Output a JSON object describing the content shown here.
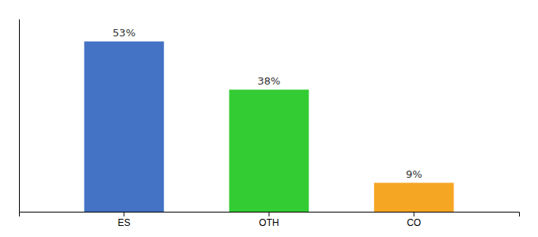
{
  "chart_data": {
    "type": "bar",
    "categories": [
      "ES",
      "OTH",
      "CO"
    ],
    "values": [
      53,
      38,
      9
    ],
    "value_labels": [
      "53%",
      "38%",
      "9%"
    ],
    "colors": [
      "#4472c4",
      "#33cc33",
      "#f5a623"
    ],
    "ylim": [
      0,
      60
    ],
    "data_labels": true,
    "tick_labels": "x",
    "grid": false
  }
}
